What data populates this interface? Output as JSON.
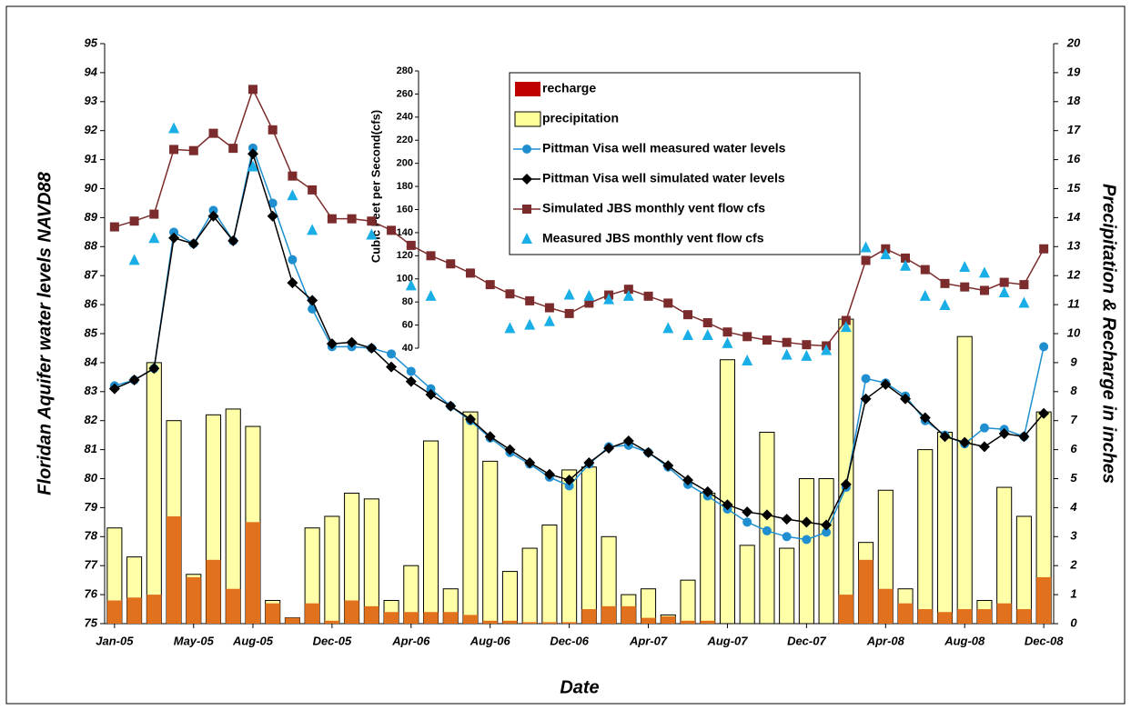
{
  "chart_data": {
    "type": "combo",
    "y_label": "Floridan Aquifer water levels NAVD88",
    "y2_label": "Precipitation & Recharge in inches",
    "y3_label": "Cubic Feet per Second(cfs)",
    "x_label": "Date",
    "categories": [
      "Jan-05",
      null,
      null,
      null,
      "May-05",
      null,
      null,
      "Aug-05",
      null,
      null,
      null,
      "Dec-05",
      null,
      null,
      null,
      "Apr-06",
      null,
      null,
      null,
      "Aug-06",
      null,
      null,
      null,
      "Dec-06",
      null,
      null,
      null,
      "Apr-07",
      null,
      null,
      null,
      "Aug-07",
      null,
      null,
      null,
      "Dec-07",
      null,
      null,
      null,
      "Apr-08",
      null,
      null,
      null,
      "Aug-08",
      null,
      null,
      null,
      "Dec-08"
    ],
    "ylim": [
      75,
      95
    ],
    "yticks": [
      75,
      76,
      77,
      78,
      79,
      80,
      81,
      82,
      83,
      84,
      85,
      86,
      87,
      88,
      89,
      90,
      91,
      92,
      93,
      94,
      95
    ],
    "y2lim": [
      0,
      20
    ],
    "y2ticks": [
      0,
      1,
      2,
      3,
      4,
      5,
      6,
      7,
      8,
      9,
      10,
      11,
      12,
      13,
      14,
      15,
      16,
      17,
      18,
      19,
      20
    ],
    "y3lim": [
      40,
      280
    ],
    "y3ticks": [
      40,
      60,
      80,
      100,
      120,
      140,
      160,
      180,
      200,
      220,
      240,
      260,
      280
    ],
    "series": [
      {
        "name": "recharge",
        "type": "bar",
        "axis": "y2",
        "color": "#e2711d",
        "values": [
          0.8,
          0.9,
          1.0,
          3.7,
          1.6,
          2.2,
          1.2,
          3.5,
          0.7,
          0.2,
          0.7,
          0.1,
          0.8,
          0.6,
          0.4,
          0.4,
          0.4,
          0.4,
          0.3,
          0.1,
          0.1,
          0.05,
          0.05,
          0.05,
          0.5,
          0.6,
          0.6,
          0.2,
          0.25,
          0.1,
          0.1,
          0,
          0,
          0,
          0,
          0,
          0,
          1.0,
          2.2,
          1.2,
          0.7,
          0.5,
          0.4,
          0.5,
          0.5,
          0.7,
          0.5,
          1.6
        ]
      },
      {
        "name": "precipitation",
        "type": "bar",
        "axis": "y2",
        "color": "#ffff99",
        "values": [
          3.3,
          2.3,
          9.0,
          7.0,
          1.7,
          7.2,
          7.4,
          6.8,
          0.8,
          0.2,
          3.3,
          3.7,
          4.5,
          4.3,
          0.8,
          2.0,
          6.3,
          1.2,
          7.3,
          5.6,
          1.8,
          2.6,
          3.4,
          5.3,
          5.4,
          3.0,
          1.0,
          1.2,
          0.3,
          1.5,
          4.5,
          9.1,
          2.7,
          6.6,
          2.6,
          5.0,
          5.0,
          10.5,
          2.8,
          4.6,
          1.2,
          6.0,
          6.6,
          9.9,
          0.8,
          4.7,
          3.7,
          7.3
        ]
      },
      {
        "name": "Pittman Visa well measured water levels",
        "type": "line",
        "marker": "circle",
        "color": "#1f8fd0",
        "values": [
          83.2,
          83.4,
          83.8,
          88.5,
          88.1,
          89.25,
          88.2,
          91.4,
          89.5,
          87.55,
          85.85,
          84.55,
          84.55,
          84.5,
          84.3,
          83.7,
          83.1,
          82.5,
          82.0,
          81.4,
          80.9,
          80.5,
          80.05,
          79.75,
          80.5,
          81.1,
          81.15,
          80.9,
          80.4,
          79.8,
          79.4,
          78.95,
          78.5,
          78.2,
          78.0,
          77.9,
          78.15,
          79.7,
          83.45,
          83.3,
          82.85,
          82.0,
          81.5,
          81.2,
          81.75,
          81.7,
          81.45,
          84.55
        ]
      },
      {
        "name": "Pittman Visa well simulated water levels",
        "type": "line",
        "marker": "diamond",
        "color": "#000000",
        "values": [
          83.1,
          83.4,
          83.8,
          88.3,
          88.1,
          89.05,
          88.2,
          91.2,
          89.05,
          86.75,
          86.15,
          84.65,
          84.7,
          84.5,
          83.85,
          83.35,
          82.9,
          82.5,
          82.05,
          81.45,
          81.0,
          80.55,
          80.15,
          79.95,
          80.55,
          81.05,
          81.3,
          80.9,
          80.45,
          79.95,
          79.55,
          79.1,
          78.85,
          78.75,
          78.6,
          78.5,
          78.4,
          79.8,
          82.75,
          83.25,
          82.75,
          82.1,
          81.45,
          81.25,
          81.1,
          81.55,
          81.45,
          82.25
        ]
      },
      {
        "name": "Simulated JBS monthly vent flow cfs",
        "type": "line",
        "marker": "square",
        "axis": "y3",
        "color": "#7b2b2b",
        "values": [
          145,
          150,
          156,
          212,
          211,
          226,
          213,
          264,
          229,
          189,
          177,
          152,
          152,
          150,
          142,
          129,
          120,
          113,
          105,
          95,
          87,
          81,
          75,
          70,
          79,
          86,
          91,
          85,
          79,
          69,
          62,
          54,
          50,
          47,
          45,
          43,
          42,
          64,
          116,
          126,
          118,
          108,
          96,
          93,
          90,
          97,
          95,
          126
        ]
      },
      {
        "name": "Measured JBS monthly vent flow cfs",
        "type": "scatter",
        "marker": "triangle",
        "axis": "y3",
        "color": "#19aee6",
        "values": [
          null,
          116,
          135,
          230,
          null,
          null,
          null,
          197,
          null,
          172,
          142,
          null,
          null,
          138,
          null,
          94,
          85,
          null,
          null,
          null,
          57,
          60,
          63,
          86,
          85,
          82,
          85,
          null,
          57,
          51,
          51,
          44,
          29,
          null,
          34,
          33,
          38,
          58,
          127,
          121,
          111,
          85,
          77,
          110,
          105,
          88,
          79,
          null
        ]
      }
    ]
  }
}
